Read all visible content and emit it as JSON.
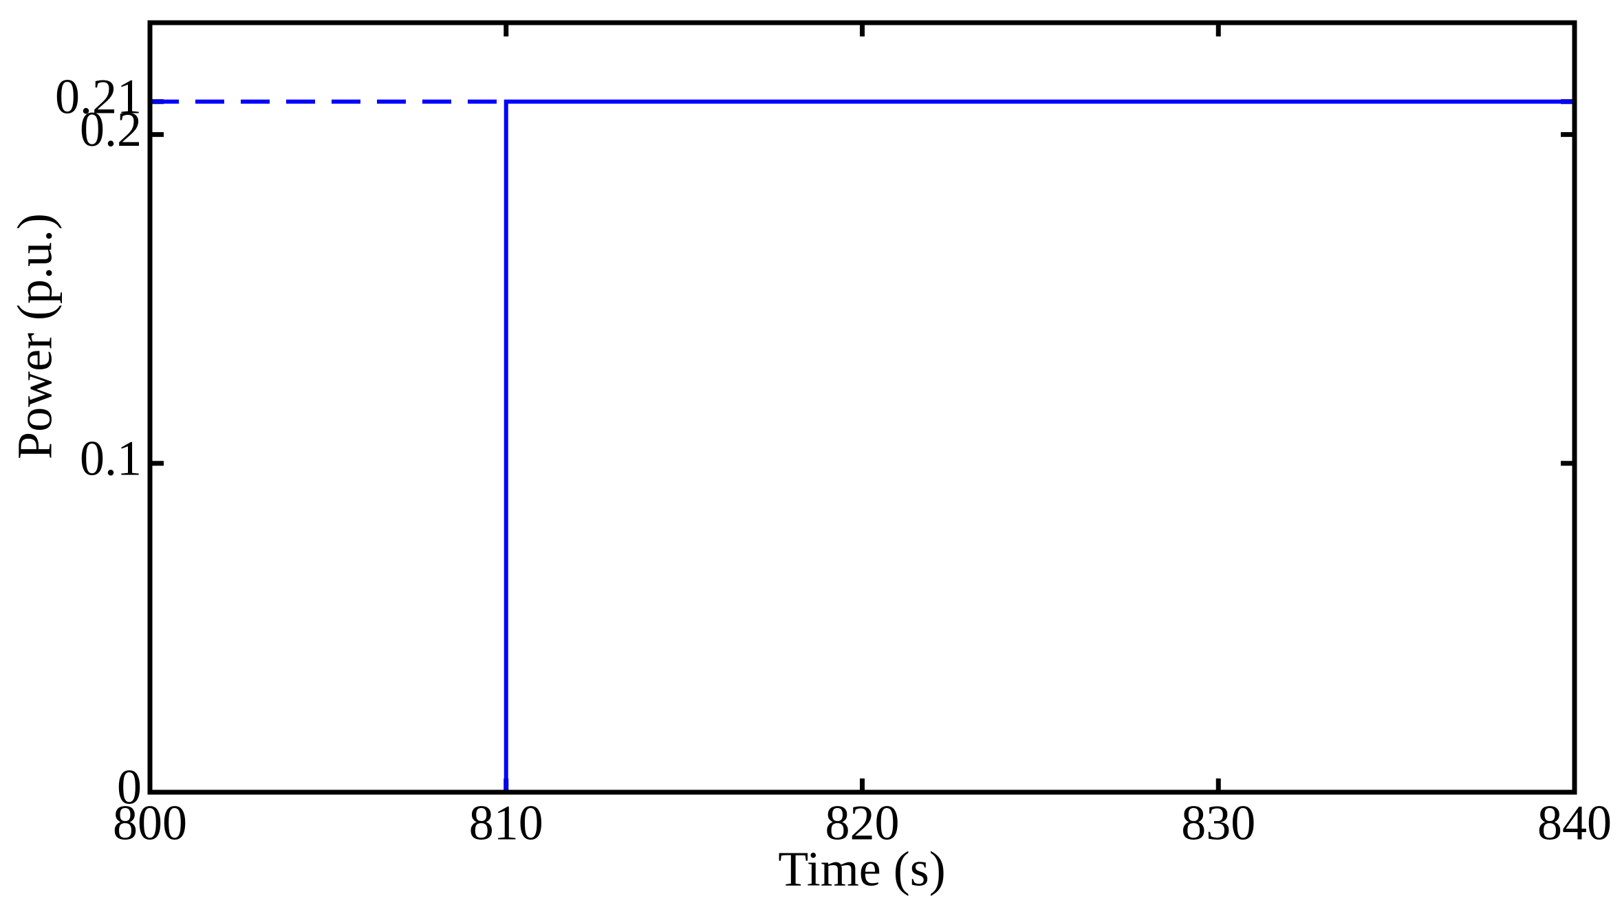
{
  "chart_data": {
    "type": "line",
    "x_label": "Time (s)",
    "y_label": "Power (p.u.)",
    "xlim": [
      800,
      840
    ],
    "xticks": [
      800,
      810,
      820,
      830,
      840
    ],
    "ylim": [
      0,
      0.234
    ],
    "yticks": [
      0,
      0.1,
      0.2,
      0.21
    ],
    "grid": false,
    "series": [
      {
        "color": "#0000ff",
        "style": "solid",
        "x": [
          800,
          810,
          810,
          840
        ],
        "values": [
          0,
          0,
          0.21,
          0.21
        ]
      },
      {
        "color": "#0000ff",
        "style": "dashed",
        "x": [
          800,
          810
        ],
        "values": [
          0.21,
          0.21
        ]
      }
    ]
  }
}
